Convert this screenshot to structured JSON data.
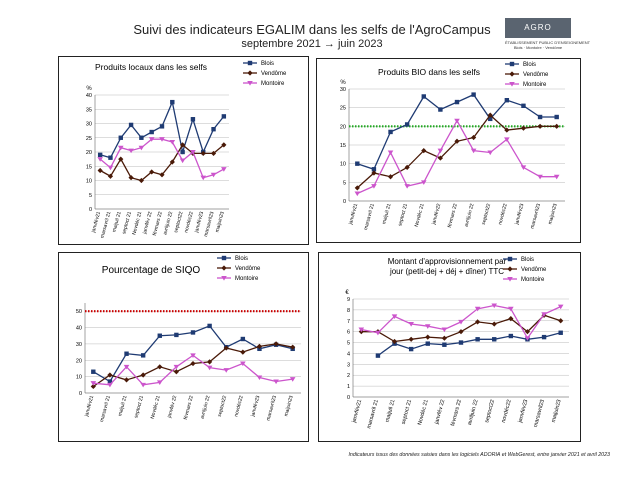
{
  "page": {
    "title": "Suivi des indicateurs EGALIM dans les selfs de l'AgroCampus",
    "subtitle": "septembre 2021 → juin 2023",
    "logo": {
      "text": "AGRO CAMPUS",
      "line1": "ÉTABLISSEMENT PUBLIC D'ENSEIGNEMENT",
      "line2": "Blois · Montoire · Vendôme"
    },
    "footnote": "Indicateurs issus des données saisies dans les logiciels ADORIA et WebGerest, entre janvier 2021 et avril 2023"
  },
  "chart_data": [
    {
      "id": "locaux",
      "type": "line",
      "title": "Produits locaux dans les selfs",
      "unit": "%",
      "categories": [
        "janvfév21",
        "marsavril 21",
        "maijuil 21",
        "septoct 21",
        "Novdéc 21",
        "janvfév 22",
        "févmars 22",
        "avriljuin 22",
        "septoct22",
        "novdéc22",
        "janvfév23",
        "marsavril23",
        "maijuin23"
      ],
      "ylim": [
        0,
        40
      ],
      "ystep": 5,
      "legend": "top-right",
      "series": [
        {
          "name": "Blois",
          "color": "#1f3b73",
          "marker": "square",
          "values": [
            19,
            18,
            25,
            29.5,
            25,
            27,
            29,
            37.5,
            20,
            31.5,
            20,
            28,
            32.5
          ]
        },
        {
          "name": "Vendôme",
          "color": "#4a1a08",
          "marker": "diamond",
          "values": [
            13.5,
            11.5,
            17.5,
            11,
            10,
            13,
            12,
            16.5,
            22.5,
            19.5,
            19.5,
            19.5,
            22.5
          ]
        },
        {
          "name": "Montoire",
          "color": "#cc55cc",
          "marker": "triangle",
          "values": [
            17.5,
            14.5,
            21.5,
            20.5,
            21.5,
            24.5,
            24.5,
            23.5,
            17,
            20,
            11,
            12,
            14
          ]
        }
      ]
    },
    {
      "id": "bio",
      "type": "line",
      "title": "Produits BIO dans les selfs",
      "unit": "%",
      "categories": [
        "janvfév21",
        "marsavril 21",
        "maijuil 21",
        "septoct 21",
        "Novdéc 21",
        "janvfév22",
        "févmars 22",
        "avriljuin 22",
        "septoct22",
        "novdéc22",
        "janvfév23",
        "marsavril23",
        "maijuin23"
      ],
      "ylim": [
        0,
        30
      ],
      "ystep": 5,
      "legend": "top-right",
      "target": {
        "value": 20,
        "color": "#22aa22",
        "style": "dotted"
      },
      "series": [
        {
          "name": "Blois",
          "color": "#1f3b73",
          "marker": "square",
          "values": [
            10,
            8.5,
            18.5,
            20.5,
            28,
            24.5,
            26.5,
            28.5,
            22,
            27,
            25.5,
            22.5,
            22.5
          ]
        },
        {
          "name": "Vendôme",
          "color": "#4a1a08",
          "marker": "diamond",
          "values": [
            3.5,
            7.5,
            6.5,
            9,
            13.5,
            11.5,
            16,
            17,
            23,
            19,
            19.5,
            20,
            20
          ]
        },
        {
          "name": "Montoire",
          "color": "#cc55cc",
          "marker": "triangle",
          "values": [
            2,
            4,
            13,
            4,
            5,
            13.5,
            21.5,
            13.5,
            13,
            16.5,
            9,
            6.5,
            6.5
          ]
        }
      ]
    },
    {
      "id": "siqo",
      "type": "line",
      "title": "Pourcentage de SIQO",
      "categories": [
        "janvfév21",
        "marsavril 21",
        "maijuil 21",
        "septoct 21",
        "Novdéc 21",
        "janvfév 22",
        "févmars 22",
        "avriljuin 22",
        "septoct22",
        "novdéc22",
        "janvfév23",
        "marsavril23",
        "maijuin23"
      ],
      "ylim": [
        0,
        55
      ],
      "ystep": 10,
      "legend": "top-right",
      "target": {
        "value": 50,
        "color": "#cc0000",
        "style": "dotted"
      },
      "series": [
        {
          "name": "Blois",
          "color": "#1f3b73",
          "marker": "square",
          "values": [
            13,
            7,
            24,
            23,
            35,
            35.5,
            37,
            41,
            28,
            33,
            27,
            29.5,
            27
          ]
        },
        {
          "name": "Vendôme",
          "color": "#4a1a08",
          "marker": "diamond",
          "values": [
            4,
            11,
            8,
            11,
            16,
            13,
            18,
            19,
            27.5,
            25,
            28.5,
            30,
            28
          ]
        },
        {
          "name": "Montoire",
          "color": "#cc55cc",
          "marker": "triangle",
          "values": [
            6,
            5,
            16,
            5,
            6.5,
            16,
            23,
            15.5,
            14,
            18,
            9.5,
            7,
            8.5
          ]
        }
      ]
    },
    {
      "id": "montant",
      "type": "line",
      "title": "Montant d'approvisionnement par jour (petit-dej + déj + dîner) TTC",
      "unit": "€",
      "categories": [
        "janvfév21",
        "marsavril 21",
        "maijuil 21",
        "septoct 21",
        "Novdéc 21",
        "janvfév 22",
        "févmars 22",
        "avriljuin 22",
        "septoct22",
        "novdéc22",
        "janvfév23",
        "marsavril23",
        "maijuin23"
      ],
      "ylim": [
        0,
        9
      ],
      "ystep": 1,
      "legend": "top-right",
      "series": [
        {
          "name": "Blois",
          "color": "#1f3b73",
          "marker": "square",
          "values": [
            null,
            3.8,
            4.9,
            4.4,
            4.9,
            4.8,
            5.0,
            5.3,
            5.3,
            5.6,
            5.3,
            5.5,
            5.9
          ]
        },
        {
          "name": "Vendôme",
          "color": "#4a1a08",
          "marker": "diamond",
          "values": [
            6.0,
            6.0,
            5.1,
            5.3,
            5.5,
            5.4,
            6.0,
            6.9,
            6.7,
            7.2,
            6.0,
            7.5,
            7.0
          ]
        },
        {
          "name": "Montoire",
          "color": "#cc55cc",
          "marker": "triangle",
          "values": [
            6.2,
            5.9,
            7.4,
            6.7,
            6.5,
            6.2,
            6.9,
            8.1,
            8.4,
            8.1,
            5.4,
            7.6,
            8.3
          ]
        }
      ]
    }
  ]
}
